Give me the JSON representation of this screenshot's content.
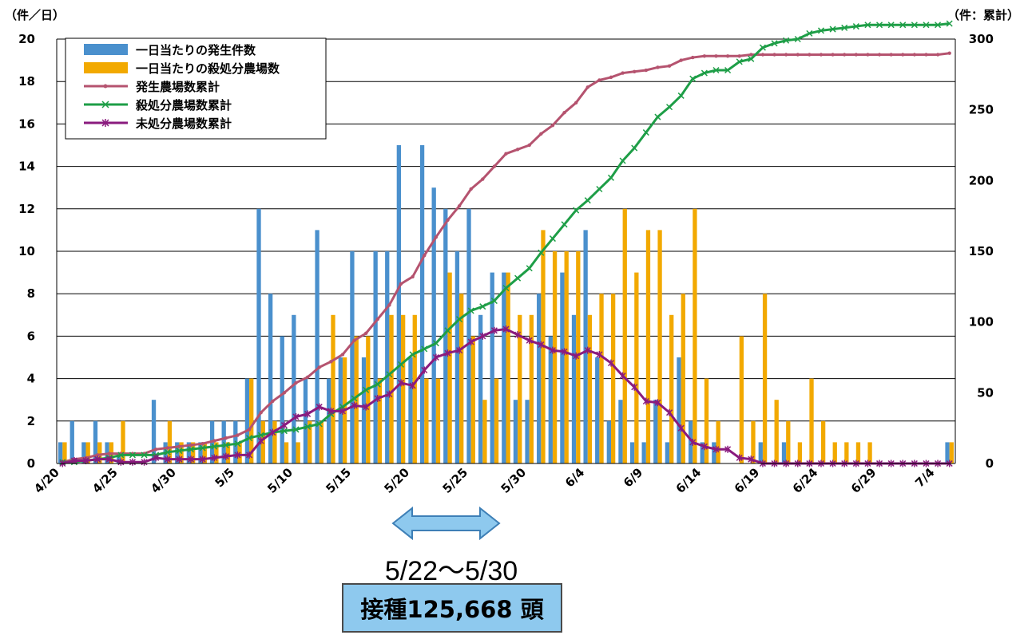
{
  "units": {
    "left": "（件／日）",
    "right": "（件：累計）"
  },
  "legend": [
    {
      "label": "一日当たりの発生件数",
      "kind": "bar",
      "color": "#4a90cd"
    },
    {
      "label": "一日当たりの殺処分農場数",
      "kind": "bar",
      "color": "#f2a900"
    },
    {
      "label": "発生農場数累計",
      "kind": "line",
      "marker": "dot",
      "color": "#b5536f"
    },
    {
      "label": "殺処分農場数累計",
      "kind": "line",
      "marker": "x",
      "color": "#1e9e47"
    },
    {
      "label": "未処分農場数累計",
      "kind": "line",
      "marker": "star",
      "color": "#8a1b7e"
    }
  ],
  "period_label": "5/22〜5/30",
  "vaccine_label": "接種125,668 頭",
  "chart_data": {
    "type": "bar",
    "x_tick_labels": [
      "4/20",
      "4/25",
      "4/30",
      "5/5",
      "5/10",
      "5/15",
      "5/20",
      "5/25",
      "5/30",
      "6/4",
      "6/9",
      "6/14",
      "6/19",
      "6/24",
      "6/29",
      "7/4"
    ],
    "x_tick_every_days": 5,
    "n_days": 77,
    "y_left": {
      "min": 0,
      "max": 20,
      "ticks": [
        "0",
        "2",
        "4",
        "6",
        "8",
        "10",
        "12",
        "14",
        "16",
        "18",
        "20"
      ]
    },
    "y_right": {
      "min": 0,
      "max": 300,
      "ticks": [
        "0",
        "50",
        "100",
        "150",
        "200",
        "250",
        "300"
      ]
    },
    "grid": true,
    "legend_position": "top-left",
    "series": [
      {
        "name": "一日当たりの発生件数",
        "type": "bar",
        "axis": "left",
        "values": [
          1,
          2,
          1,
          2,
          1,
          0.5,
          0,
          0,
          3,
          1,
          1,
          1,
          1,
          2,
          2,
          2,
          4,
          12,
          8,
          6,
          7,
          4,
          11,
          4,
          5,
          10,
          5,
          10,
          10,
          15,
          5,
          15,
          13,
          12,
          10,
          12,
          7,
          9,
          9,
          3,
          3,
          8,
          6,
          9,
          7,
          11,
          5,
          2,
          3,
          1,
          1,
          3,
          1,
          5,
          2,
          1,
          1,
          0,
          0,
          0,
          1,
          0,
          1,
          0,
          0,
          0,
          0,
          0,
          0,
          0,
          0,
          0,
          0,
          0,
          0,
          0,
          1
        ]
      },
      {
        "name": "一日当たりの殺処分農場数",
        "type": "bar",
        "axis": "left",
        "values": [
          1,
          0,
          1,
          1,
          1,
          2,
          0,
          0,
          0,
          2,
          1,
          1,
          1,
          1,
          1,
          1,
          4,
          2,
          2,
          1,
          1,
          2,
          2,
          7,
          5,
          6,
          6,
          4,
          7,
          7,
          7,
          4,
          4,
          9,
          8,
          6,
          3,
          4,
          9,
          7,
          7,
          11,
          10,
          10,
          10,
          7,
          8,
          8,
          12,
          9,
          11,
          11,
          7,
          8,
          12,
          4,
          2,
          0,
          6,
          2,
          8,
          3,
          2,
          1,
          4,
          2,
          1,
          1,
          1,
          1,
          0,
          0,
          0,
          0,
          0,
          0,
          1
        ]
      },
      {
        "name": "発生農場数累計",
        "type": "line",
        "axis": "right",
        "values": [
          1,
          3,
          4,
          6,
          7,
          7,
          7,
          7,
          10,
          11,
          12,
          13,
          14,
          16,
          18,
          20,
          24,
          36,
          44,
          50,
          57,
          61,
          68,
          72,
          77,
          87,
          92,
          102,
          112,
          127,
          132,
          147,
          160,
          172,
          182,
          194,
          201,
          210,
          219,
          222,
          225,
          233,
          239,
          248,
          255,
          266,
          271,
          273,
          276,
          277,
          278,
          280,
          281,
          285,
          287,
          288,
          288,
          288,
          288,
          289,
          289,
          289,
          289,
          289,
          289,
          289,
          289,
          289,
          289,
          289,
          289,
          289,
          289,
          289,
          289,
          289,
          290
        ]
      },
      {
        "name": "殺処分農場数累計",
        "type": "line",
        "axis": "right",
        "values": [
          1,
          1,
          2,
          3,
          4,
          6,
          6,
          6,
          6,
          8,
          9,
          10,
          11,
          12,
          13,
          14,
          18,
          20,
          22,
          23,
          24,
          26,
          28,
          35,
          40,
          46,
          52,
          56,
          63,
          70,
          77,
          81,
          85,
          94,
          102,
          108,
          111,
          115,
          124,
          131,
          138,
          149,
          159,
          169,
          179,
          186,
          194,
          202,
          214,
          223,
          234,
          245,
          252,
          260,
          272,
          276,
          278,
          278,
          284,
          286,
          294,
          297,
          299,
          300,
          304,
          306,
          307,
          308,
          309,
          310,
          310,
          310,
          310,
          310,
          310,
          310,
          311
        ]
      },
      {
        "name": "未処分農場数累計",
        "type": "line",
        "axis": "right",
        "values": [
          0,
          2,
          2,
          3,
          3,
          1,
          1,
          1,
          4,
          3,
          3,
          3,
          3,
          4,
          5,
          6,
          6,
          16,
          22,
          27,
          33,
          35,
          40,
          37,
          37,
          41,
          40,
          46,
          49,
          57,
          55,
          66,
          75,
          78,
          80,
          86,
          90,
          94,
          95,
          91,
          87,
          84,
          80,
          79,
          76,
          80,
          77,
          71,
          62,
          54,
          44,
          43,
          36,
          25,
          15,
          12,
          10,
          10,
          4,
          3,
          -5,
          -8,
          -10,
          -11,
          -15,
          -17,
          -18,
          -19,
          -20,
          -21,
          -21,
          -21,
          -21,
          -21,
          -21,
          -21,
          -21
        ]
      }
    ]
  }
}
